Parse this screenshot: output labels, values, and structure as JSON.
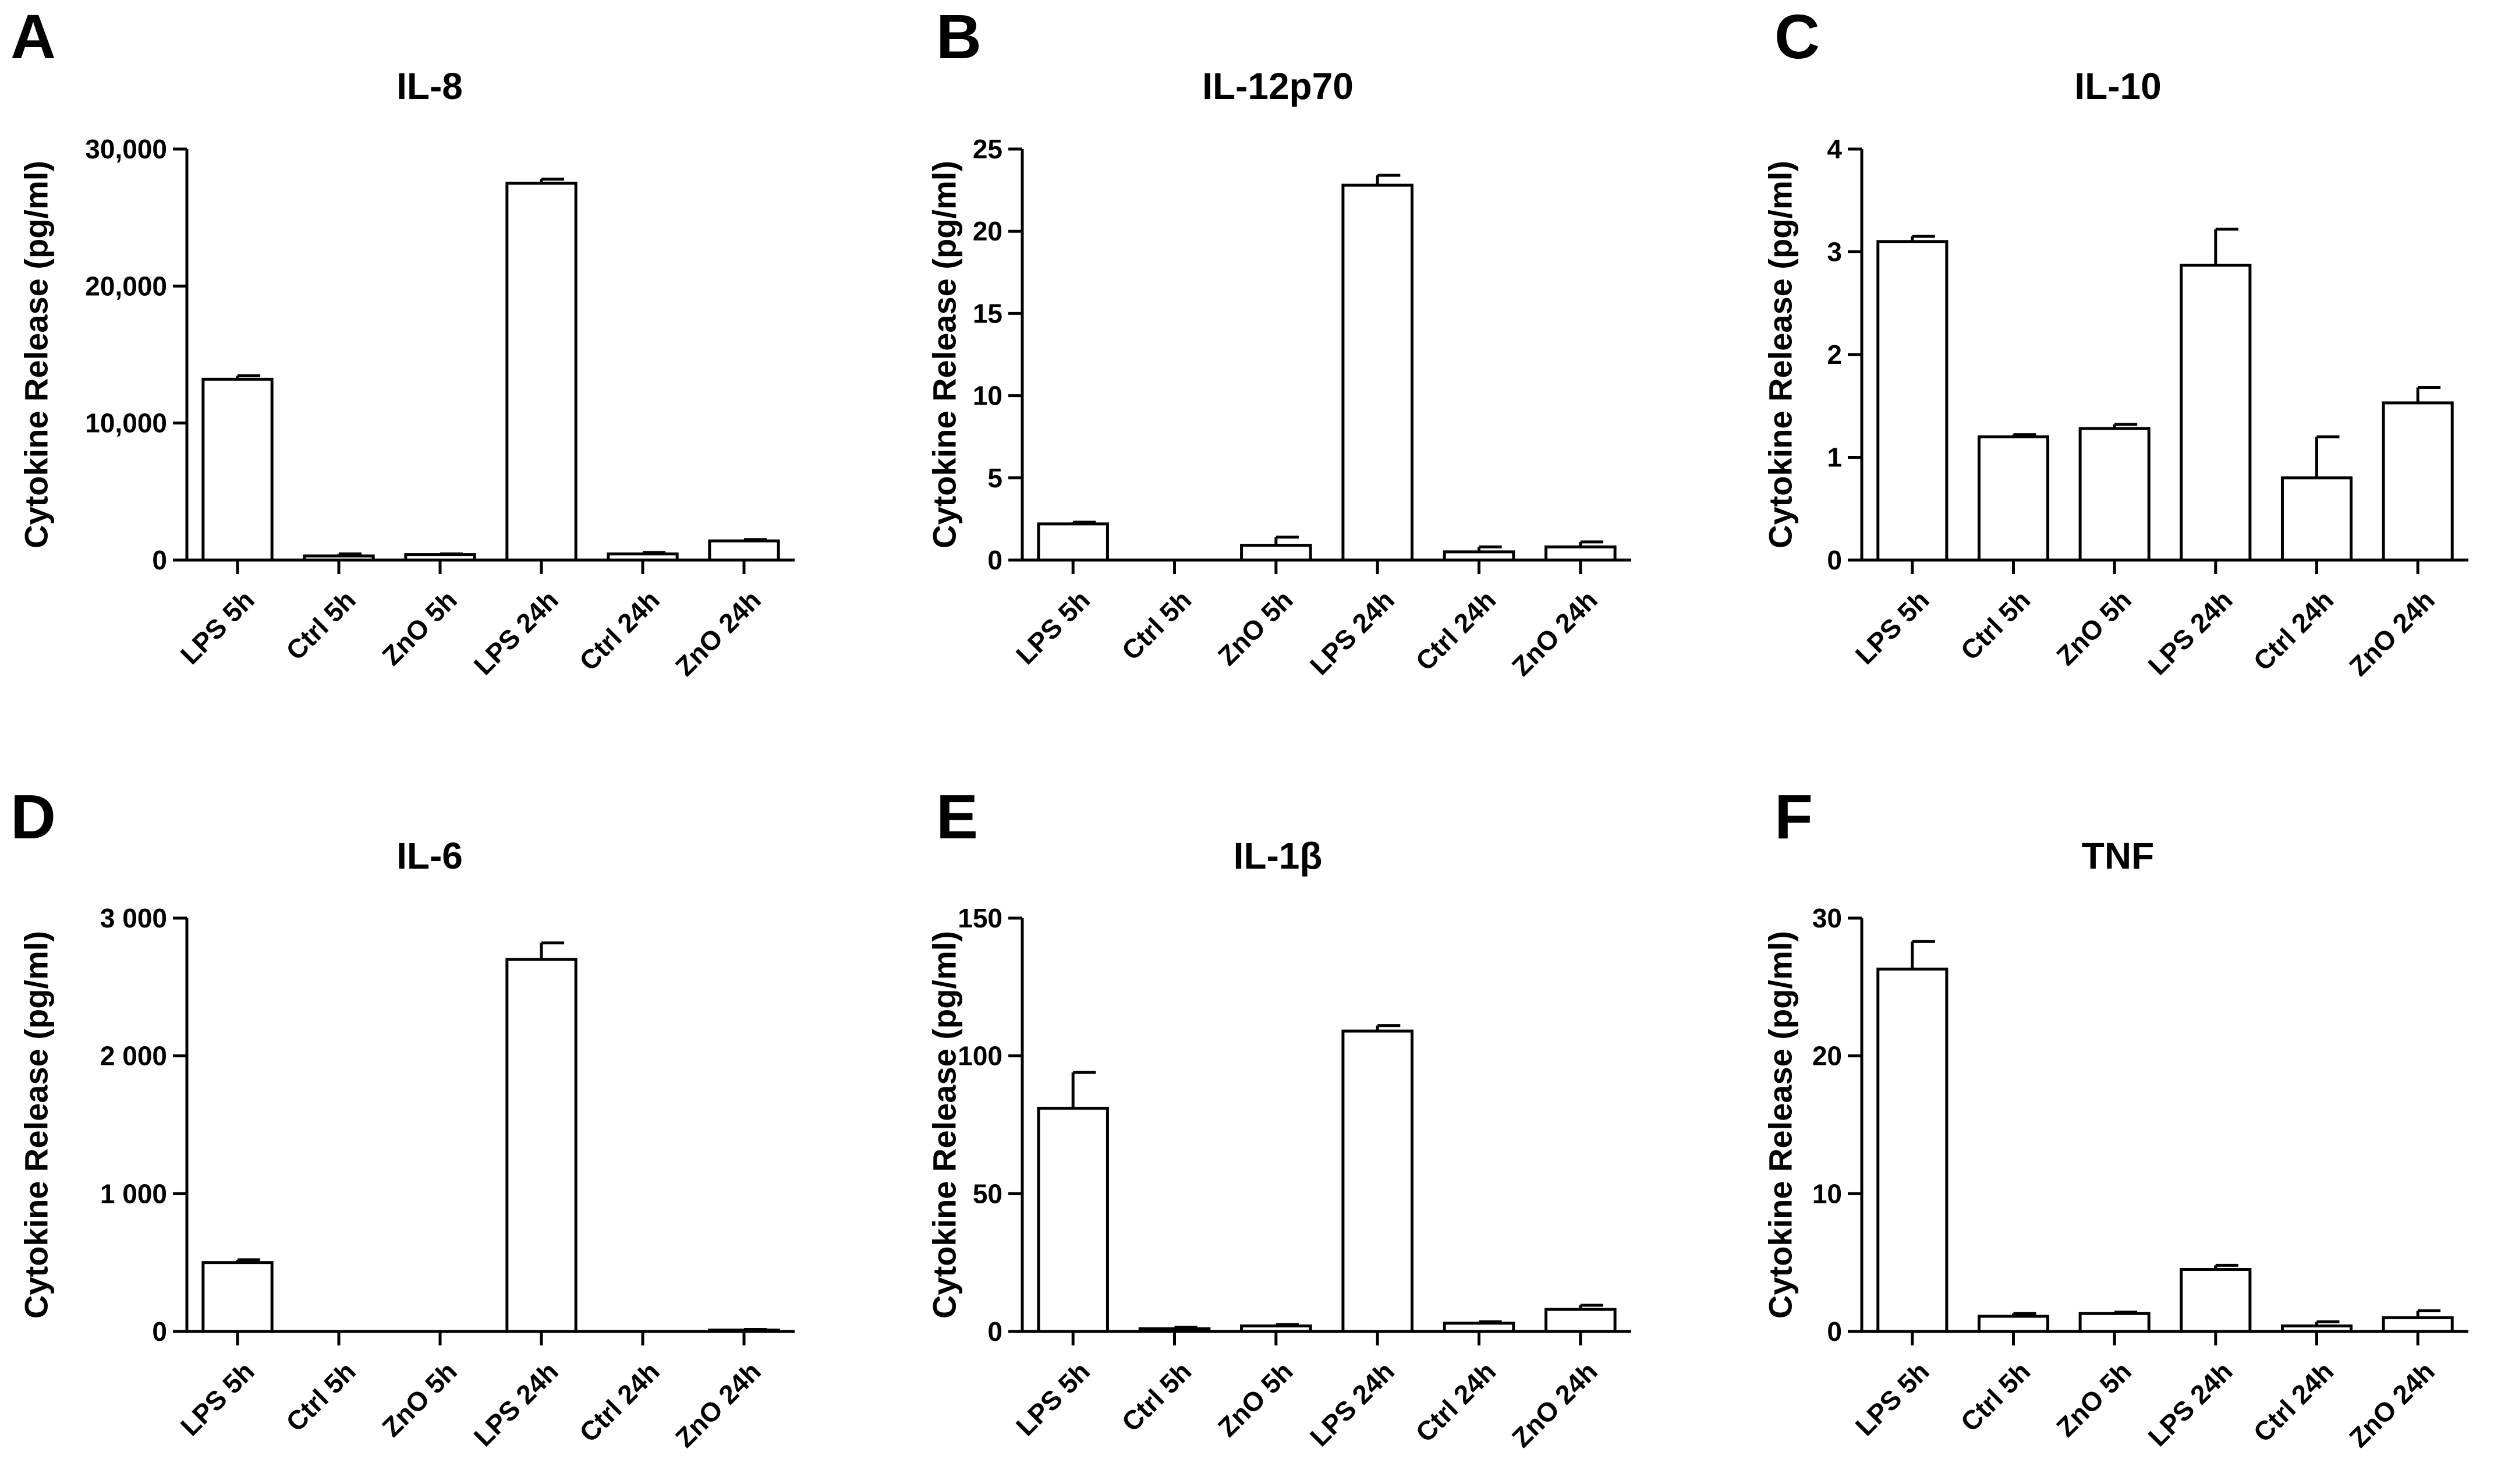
{
  "chart_data": [
    {
      "panel": "A",
      "type": "bar",
      "title": "IL-8",
      "ylabel": "Cytokine Release (pg/ml)",
      "categories": [
        "LPS 5h",
        "Ctrl 5h",
        "ZnO 5h",
        "LPS 24h",
        "Ctrl 24h",
        "ZnO 24h"
      ],
      "values": [
        13200,
        300,
        400,
        27500,
        450,
        1400
      ],
      "errors": [
        250,
        150,
        50,
        300,
        100,
        100
      ],
      "ylim": [
        0,
        30000
      ],
      "yticks": [
        0,
        10000,
        20000,
        30000
      ],
      "ytick_labels": [
        "0",
        "10,000",
        "20,000",
        "30,000"
      ]
    },
    {
      "panel": "B",
      "type": "bar",
      "title": "IL-12p70",
      "ylabel": "Cytokine Release (pg/ml)",
      "categories": [
        "LPS 5h",
        "Ctrl 5h",
        "ZnO 5h",
        "LPS 24h",
        "Ctrl 24h",
        "ZnO 24h"
      ],
      "values": [
        2.2,
        0,
        0.9,
        22.8,
        0.5,
        0.8
      ],
      "errors": [
        0.1,
        0,
        0.5,
        0.6,
        0.3,
        0.3
      ],
      "ylim": [
        0,
        25
      ],
      "yticks": [
        0,
        5,
        10,
        15,
        20,
        25
      ],
      "ytick_labels": [
        "0",
        "5",
        "10",
        "15",
        "20",
        "25"
      ]
    },
    {
      "panel": "C",
      "type": "bar",
      "title": "IL-10",
      "ylabel": "Cytokine Release (pg/ml)",
      "categories": [
        "LPS 5h",
        "Ctrl 5h",
        "ZnO 5h",
        "LPS 24h",
        "Ctrl 24h",
        "ZnO 24h"
      ],
      "values": [
        3.1,
        1.2,
        1.28,
        2.87,
        0.8,
        1.53
      ],
      "errors": [
        0.05,
        0.02,
        0.04,
        0.35,
        0.4,
        0.15
      ],
      "ylim": [
        0,
        4
      ],
      "yticks": [
        0,
        1,
        2,
        3,
        4
      ],
      "ytick_labels": [
        "0",
        "1",
        "2",
        "3",
        "4"
      ]
    },
    {
      "panel": "D",
      "type": "bar",
      "title": "IL-6",
      "ylabel": "Cytokine Release (pg/ml)",
      "categories": [
        "LPS 5h",
        "Ctrl 5h",
        "ZnO 5h",
        "LPS 24h",
        "Ctrl 24h",
        "ZnO 24h"
      ],
      "values": [
        500,
        0,
        0,
        2700,
        0,
        10
      ],
      "errors": [
        20,
        0,
        0,
        120,
        0,
        5
      ],
      "ylim": [
        0,
        3000
      ],
      "yticks": [
        0,
        1000,
        2000,
        3000
      ],
      "ytick_labels": [
        "0",
        "1 000",
        "2 000",
        "3 000"
      ]
    },
    {
      "panel": "E",
      "type": "bar",
      "title": "IL-1β",
      "ylabel": "Cytokine Release (pg/ml)",
      "categories": [
        "LPS 5h",
        "Ctrl 5h",
        "ZnO 5h",
        "LPS 24h",
        "Ctrl 24h",
        "ZnO 24h"
      ],
      "values": [
        81,
        1,
        2,
        109,
        3,
        8
      ],
      "errors": [
        13,
        0.5,
        0.5,
        2,
        0.5,
        1.5
      ],
      "ylim": [
        0,
        150
      ],
      "yticks": [
        0,
        50,
        100,
        150
      ],
      "ytick_labels": [
        "0",
        "50",
        "100",
        "150"
      ]
    },
    {
      "panel": "F",
      "type": "bar",
      "title": "TNF",
      "ylabel": "Cytokine Release (pg/ml)",
      "categories": [
        "LPS 5h",
        "Ctrl 5h",
        "ZnO 5h",
        "LPS 24h",
        "Ctrl 24h",
        "ZnO 24h"
      ],
      "values": [
        26.3,
        1.1,
        1.3,
        4.5,
        0.4,
        1.0
      ],
      "errors": [
        2,
        0.2,
        0.1,
        0.3,
        0.3,
        0.5
      ],
      "ylim": [
        0,
        30
      ],
      "yticks": [
        0,
        10,
        20,
        30
      ],
      "ytick_labels": [
        "0",
        "10",
        "20",
        "30"
      ]
    }
  ]
}
